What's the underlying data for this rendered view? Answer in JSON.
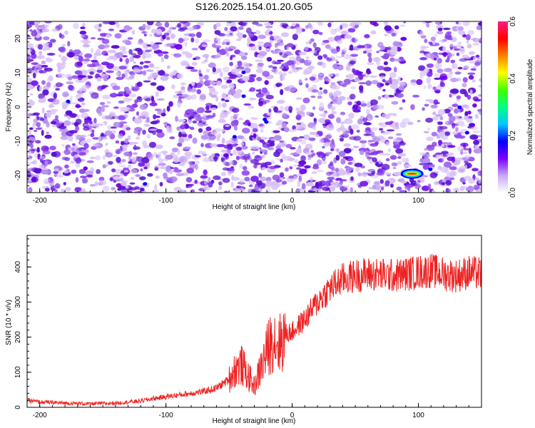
{
  "title": "S126.2025.154.01.20.G05",
  "chart_data": [
    {
      "type": "heatmap",
      "xlabel": "Height of straight line (km)",
      "ylabel": "Frequency (Hz)",
      "xlim": [
        -210,
        150
      ],
      "ylim": [
        -25,
        25
      ],
      "x_ticks": [
        -200,
        -100,
        0,
        100
      ],
      "y_ticks": [
        20,
        10,
        0,
        -10,
        -20
      ],
      "colorbar": {
        "label": "Normalized spectral amplitude",
        "range": [
          0,
          0.6
        ],
        "ticks": [
          "0.0",
          "0.2",
          "0.4",
          "0.6"
        ],
        "colors": [
          "#ffffff",
          "#c8a6f5",
          "#7b00ff",
          "#0000ff",
          "#00c8ff",
          "#00ff80",
          "#40ff00",
          "#ffff00",
          "#ff8000",
          "#ff0000",
          "#ff2080"
        ]
      },
      "peak": {
        "x": 95,
        "y": -19.5,
        "value": 0.6
      },
      "grid": false
    },
    {
      "type": "line",
      "xlabel": "Height of straight line (km)",
      "ylabel": "SNR (10 * v/v)",
      "xlim": [
        -210,
        150
      ],
      "ylim": [
        0,
        490
      ],
      "x_ticks": [
        -200,
        -100,
        0,
        100
      ],
      "y_ticks": [
        0,
        100,
        200,
        300,
        400
      ],
      "color": "#ee2222",
      "series": [
        {
          "x": [
            -210,
            -200,
            -180,
            -160,
            -140,
            -120,
            -110,
            -100,
            -90,
            -80,
            -70,
            -60,
            -50,
            -45,
            -40,
            -35,
            -30,
            -25,
            -20,
            -15,
            -10,
            -5,
            0,
            10,
            20,
            30,
            40,
            50,
            60,
            70,
            80,
            90,
            100,
            110,
            120,
            130,
            140,
            150
          ],
          "values": [
            20,
            15,
            12,
            10,
            12,
            18,
            25,
            30,
            35,
            40,
            45,
            55,
            80,
            110,
            120,
            90,
            60,
            110,
            160,
            200,
            180,
            210,
            215,
            250,
            300,
            340,
            365,
            375,
            380,
            378,
            375,
            380,
            385,
            390,
            380,
            375,
            385,
            380
          ]
        }
      ],
      "grid": false
    }
  ]
}
